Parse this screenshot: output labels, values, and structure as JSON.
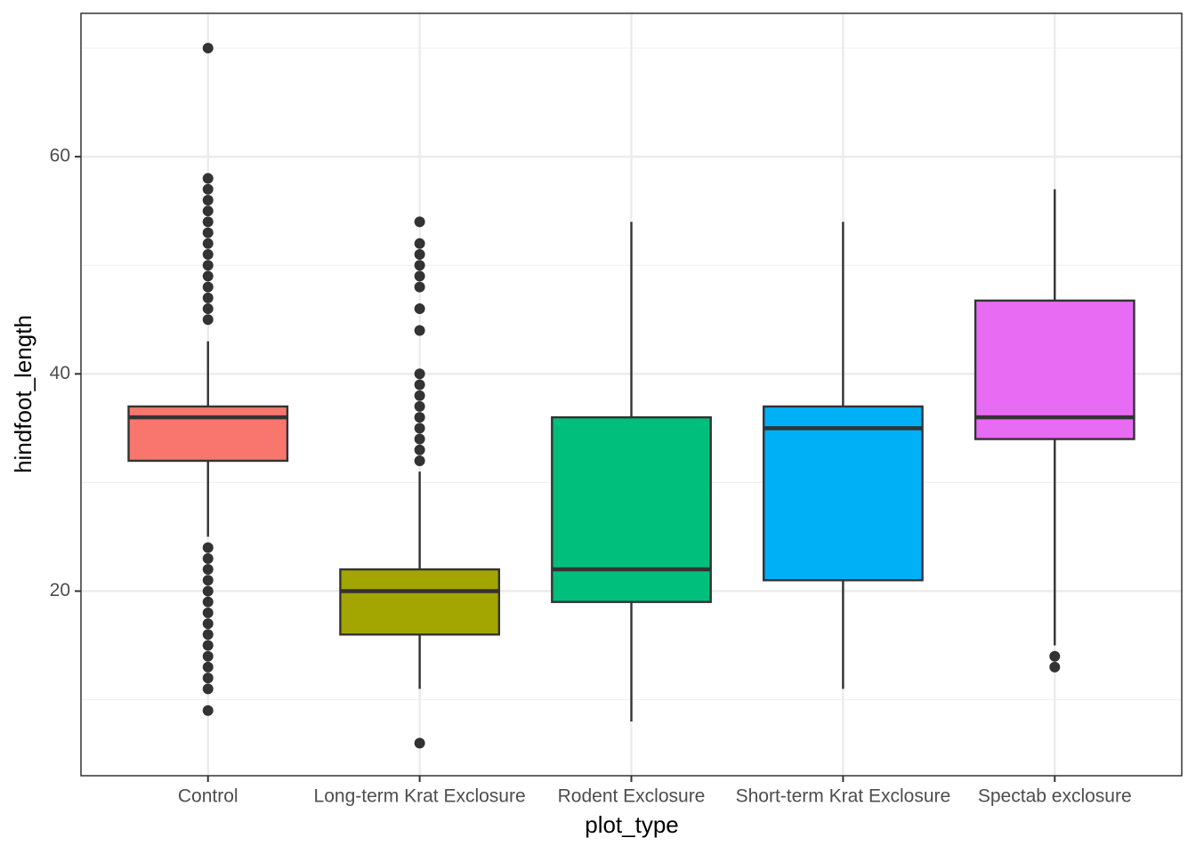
{
  "chart_data": {
    "type": "box",
    "x_label": "plot_type",
    "y_label": "hindfoot_length",
    "categories": [
      "Control",
      "Long-term Krat Exclosure",
      "Rodent Exclosure",
      "Short-term Krat Exclosure",
      "Spectab exclosure"
    ],
    "colors": [
      "#F8766D",
      "#A3A500",
      "#00BF7D",
      "#00B0F6",
      "#E76BF3"
    ],
    "boxes": [
      {
        "whisker_low": 25,
        "q1": 32,
        "median": 36,
        "q3": 37,
        "whisker_high": 43,
        "outliers": [
          9,
          11,
          12,
          13,
          14,
          15,
          16,
          17,
          18,
          19,
          20,
          21,
          22,
          23,
          24,
          45,
          46,
          47,
          48,
          49,
          50,
          51,
          52,
          53,
          54,
          55,
          56,
          57,
          58,
          70
        ]
      },
      {
        "whisker_low": 11,
        "q1": 16,
        "median": 20,
        "q3": 22,
        "whisker_high": 31,
        "outliers": [
          6,
          32,
          33,
          34,
          35,
          36,
          37,
          38,
          39,
          40,
          44,
          46,
          48,
          49,
          50,
          51,
          52,
          54
        ]
      },
      {
        "whisker_low": 8,
        "q1": 19,
        "median": 22,
        "q3": 36,
        "whisker_high": 54,
        "outliers": []
      },
      {
        "whisker_low": 11,
        "q1": 21,
        "median": 35,
        "q3": 37,
        "whisker_high": 54,
        "outliers": []
      },
      {
        "whisker_low": 15,
        "q1": 34,
        "median": 36,
        "q3": 46.75,
        "whisker_high": 57,
        "outliers": [
          13,
          14
        ]
      }
    ],
    "ylim": [
      3,
      73.2
    ],
    "yticks": [
      20,
      40,
      60
    ],
    "minor_yticks": [
      10,
      30,
      50,
      70
    ],
    "grid": true
  }
}
